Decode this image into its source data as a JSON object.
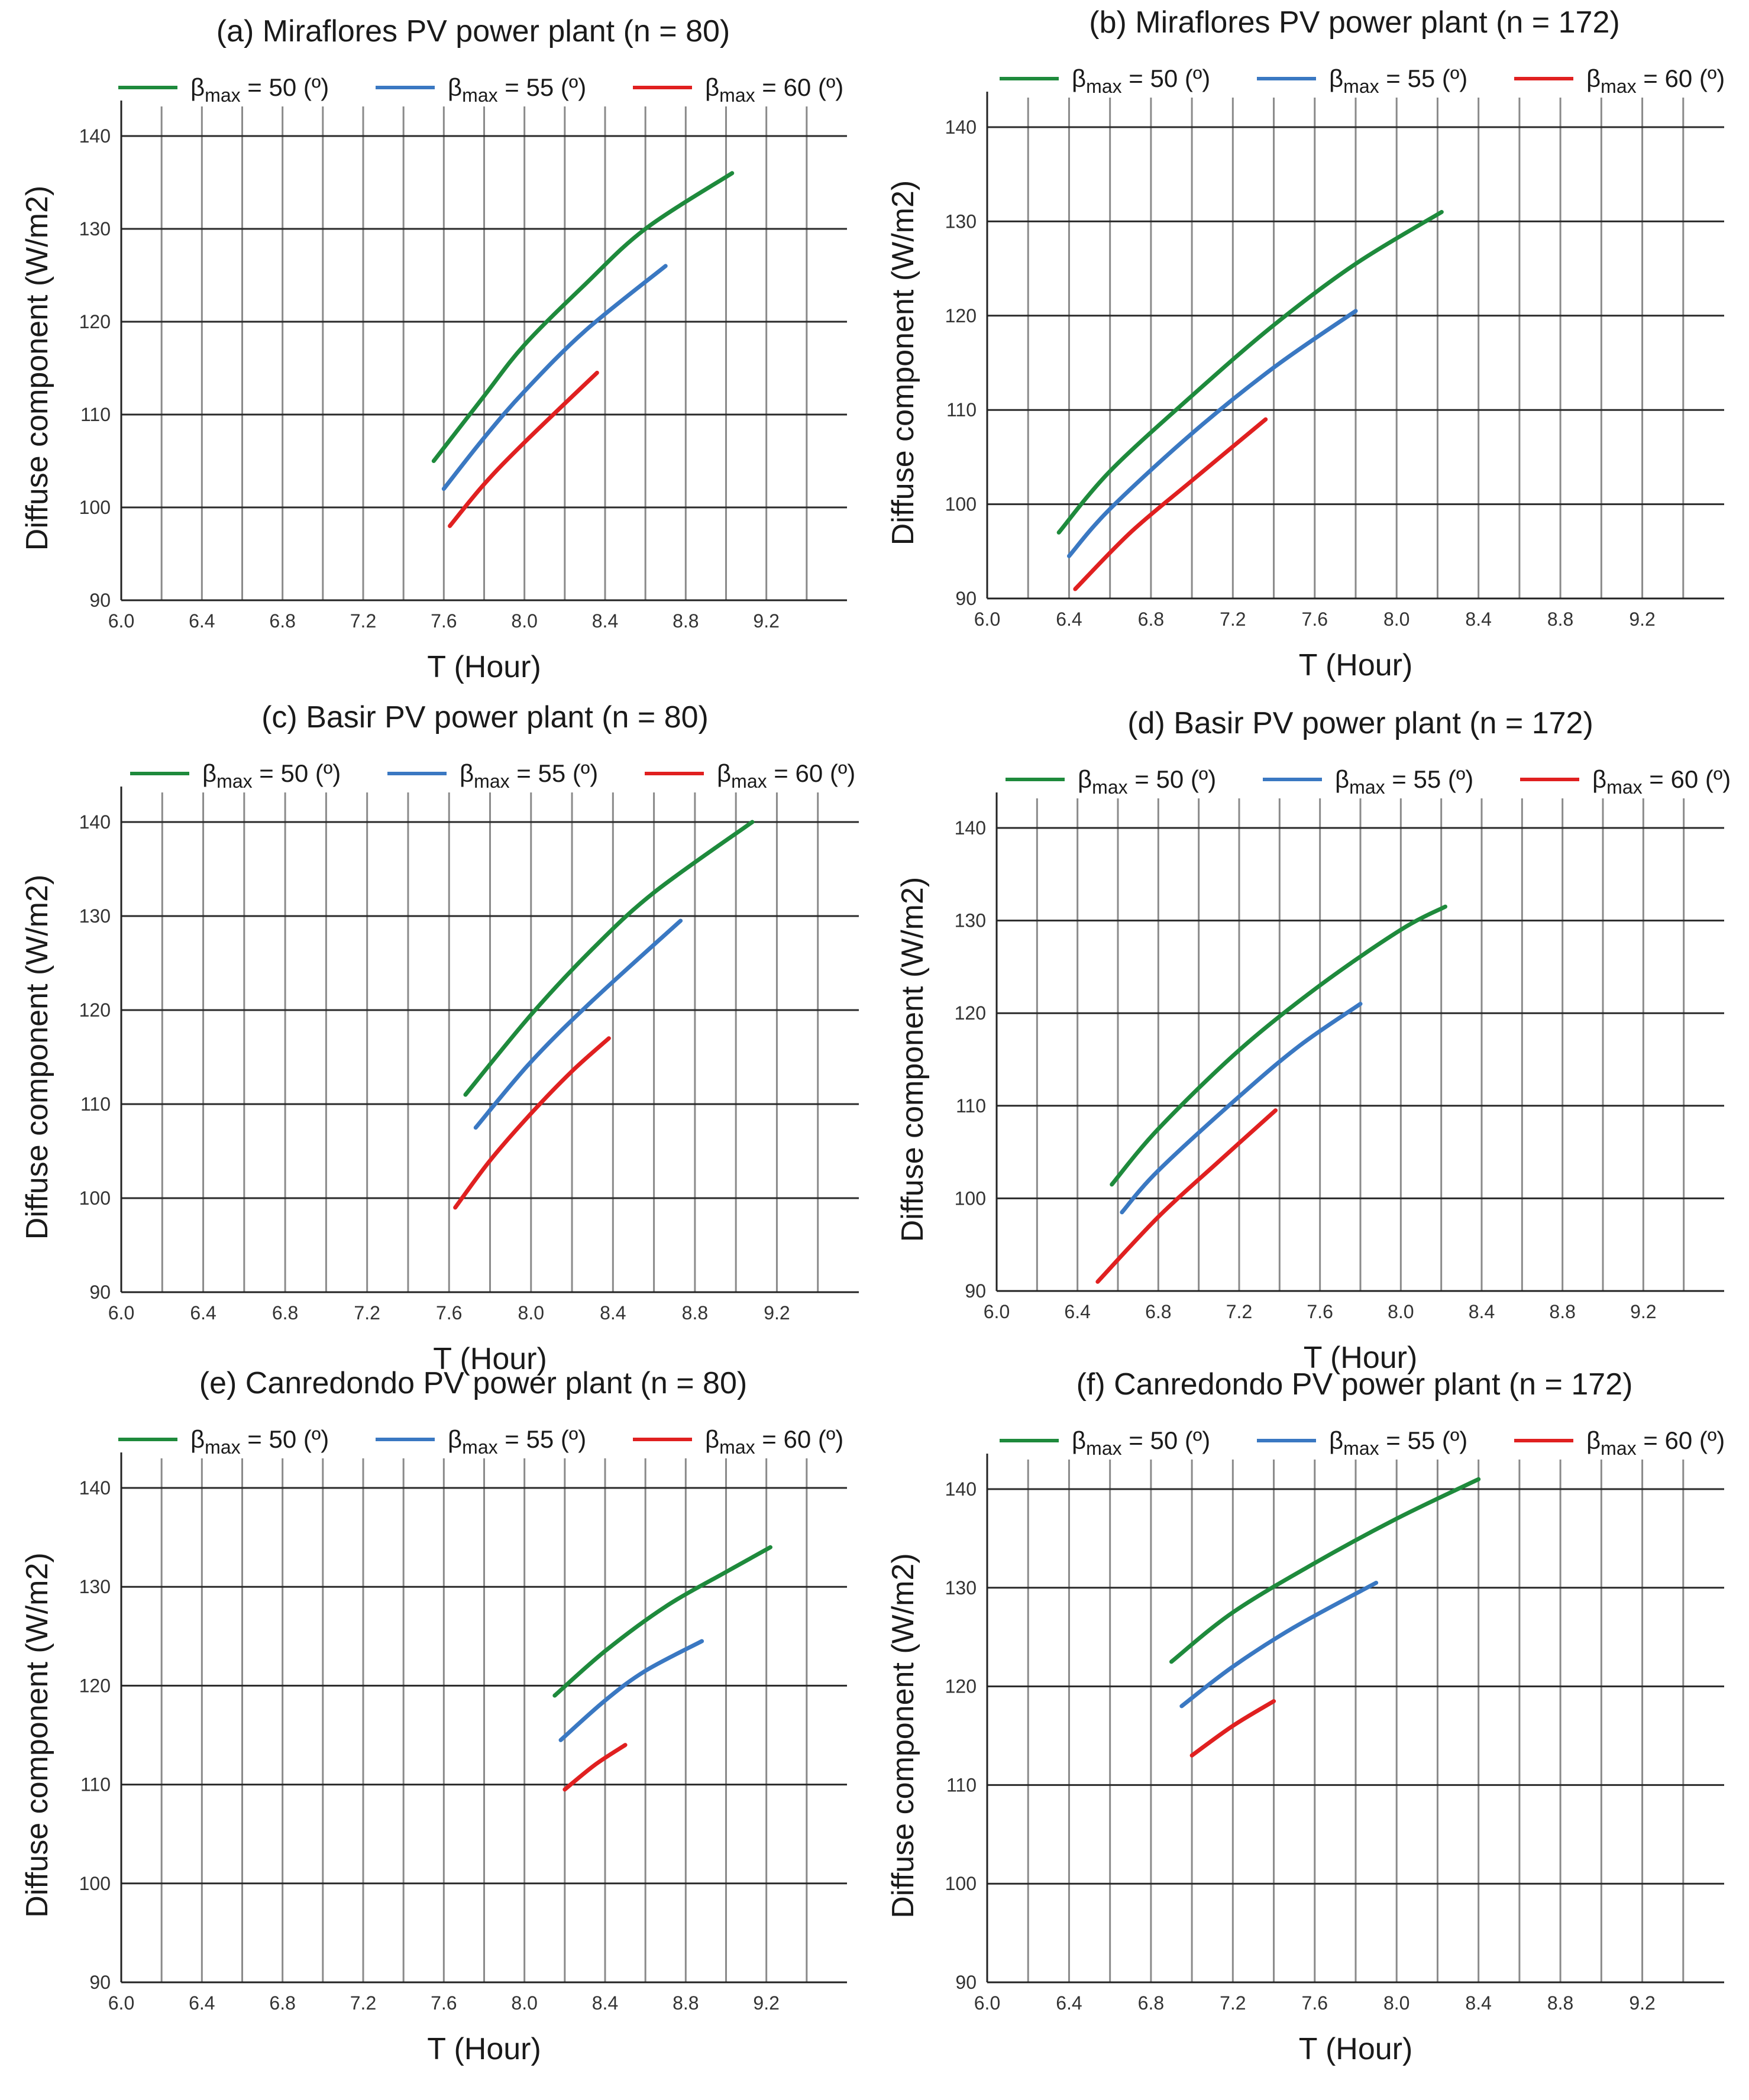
{
  "chart_data": [
    {
      "type": "line",
      "title": "(a) Miraflores PV power plant (n = 80)",
      "xlabel": "T (Hour)",
      "ylabel": "Diffuse component (W/m2)",
      "xlim": [
        6.0,
        9.6
      ],
      "ylim": [
        90,
        140
      ],
      "xticks": [
        "6.0",
        "6.4",
        "6.8",
        "7.2",
        "7.6",
        "8.0",
        "8.4",
        "8.8",
        "9.2"
      ],
      "yticks": [
        "90",
        "100",
        "110",
        "120",
        "130",
        "140"
      ],
      "grid": true,
      "legend": "top",
      "series": [
        {
          "name_main": "β",
          "name_sub": "max",
          "name_rest": " = 50 (º)",
          "color": "#1e8a3c",
          "x": [
            7.55,
            7.8,
            8.0,
            8.3,
            8.6,
            9.03
          ],
          "y": [
            105,
            112,
            117.5,
            124,
            130,
            136
          ]
        },
        {
          "name_main": "β",
          "name_sub": "max",
          "name_rest": " = 55 (º)",
          "color": "#3a78c2",
          "x": [
            7.6,
            7.8,
            8.0,
            8.3,
            8.7
          ],
          "y": [
            102,
            107.5,
            112.5,
            119,
            126
          ]
        },
        {
          "name_main": "β",
          "name_sub": "max",
          "name_rest": " = 60 (º)",
          "color": "#e02020",
          "x": [
            7.63,
            7.8,
            8.0,
            8.36
          ],
          "y": [
            98,
            102.5,
            107,
            114.5
          ]
        }
      ]
    },
    {
      "type": "line",
      "title": "(b) Miraflores PV power plant (n = 172)",
      "xlabel": "T (Hour)",
      "ylabel": "Diffuse component (W/m2)",
      "xlim": [
        6.0,
        9.6
      ],
      "ylim": [
        90,
        140
      ],
      "xticks": [
        "6.0",
        "6.4",
        "6.8",
        "7.2",
        "7.6",
        "8.0",
        "8.4",
        "8.8",
        "9.2"
      ],
      "yticks": [
        "90",
        "100",
        "110",
        "120",
        "130",
        "140"
      ],
      "grid": true,
      "legend": "top",
      "series": [
        {
          "name_main": "β",
          "name_sub": "max",
          "name_rest": " = 50 (º)",
          "color": "#1e8a3c",
          "x": [
            6.35,
            6.6,
            7.0,
            7.4,
            7.8,
            8.22
          ],
          "y": [
            97,
            103.5,
            111.5,
            119,
            125.5,
            131
          ]
        },
        {
          "name_main": "β",
          "name_sub": "max",
          "name_rest": " = 55 (º)",
          "color": "#3a78c2",
          "x": [
            6.4,
            6.6,
            7.0,
            7.4,
            7.8
          ],
          "y": [
            94.5,
            99.5,
            107.5,
            114.5,
            120.5
          ]
        },
        {
          "name_main": "β",
          "name_sub": "max",
          "name_rest": " = 60 (º)",
          "color": "#e02020",
          "x": [
            6.43,
            6.7,
            7.0,
            7.36
          ],
          "y": [
            91,
            97,
            102.5,
            109
          ]
        }
      ]
    },
    {
      "type": "line",
      "title": "(c) Basir PV power plant (n = 80)",
      "xlabel": "T (Hour)",
      "ylabel": "Diffuse component (W/m2)",
      "xlim": [
        6.0,
        9.6
      ],
      "ylim": [
        90,
        140
      ],
      "xticks": [
        "6.0",
        "6.4",
        "6.8",
        "7.2",
        "7.6",
        "8.0",
        "8.4",
        "8.8",
        "9.2"
      ],
      "yticks": [
        "90",
        "100",
        "110",
        "120",
        "130",
        "140"
      ],
      "grid": true,
      "legend": "top",
      "series": [
        {
          "name_main": "β",
          "name_sub": "max",
          "name_rest": " = 50 (º)",
          "color": "#1e8a3c",
          "x": [
            7.68,
            8.0,
            8.3,
            8.6,
            9.08
          ],
          "y": [
            111,
            119.5,
            126.5,
            132.5,
            140
          ]
        },
        {
          "name_main": "β",
          "name_sub": "max",
          "name_rest": " = 55 (º)",
          "color": "#3a78c2",
          "x": [
            7.73,
            8.0,
            8.3,
            8.73
          ],
          "y": [
            107.5,
            114.5,
            121,
            129.5
          ]
        },
        {
          "name_main": "β",
          "name_sub": "max",
          "name_rest": " = 60 (º)",
          "color": "#e02020",
          "x": [
            7.63,
            7.8,
            8.0,
            8.2,
            8.38
          ],
          "y": [
            99,
            104,
            109,
            113.5,
            117
          ]
        }
      ]
    },
    {
      "type": "line",
      "title": "(d) Basir PV power plant (n = 172)",
      "xlabel": "T (Hour)",
      "ylabel": "Diffuse component (W/m2)",
      "xlim": [
        6.0,
        9.6
      ],
      "ylim": [
        90,
        140
      ],
      "xticks": [
        "6.0",
        "6.4",
        "6.8",
        "7.2",
        "7.6",
        "8.0",
        "8.4",
        "8.8",
        "9.2"
      ],
      "yticks": [
        "90",
        "100",
        "110",
        "120",
        "130",
        "140"
      ],
      "grid": true,
      "legend": "top",
      "series": [
        {
          "name_main": "β",
          "name_sub": "max",
          "name_rest": " = 50 (º)",
          "color": "#1e8a3c",
          "x": [
            6.57,
            6.8,
            7.2,
            7.6,
            8.0,
            8.22
          ],
          "y": [
            101.5,
            107.5,
            116,
            123,
            129,
            131.5
          ]
        },
        {
          "name_main": "β",
          "name_sub": "max",
          "name_rest": " = 55 (º)",
          "color": "#3a78c2",
          "x": [
            6.62,
            6.8,
            7.2,
            7.5,
            7.8
          ],
          "y": [
            98.5,
            103,
            111,
            116.5,
            121
          ]
        },
        {
          "name_main": "β",
          "name_sub": "max",
          "name_rest": " = 60 (º)",
          "color": "#e02020",
          "x": [
            6.5,
            6.8,
            7.1,
            7.38
          ],
          "y": [
            91,
            98,
            104,
            109.5
          ]
        }
      ]
    },
    {
      "type": "line",
      "title": "(e) Canredondo PV power plant (n = 80)",
      "xlabel": "T (Hour)",
      "ylabel": "Diffuse component (W/m2)",
      "xlim": [
        6.0,
        9.6
      ],
      "ylim": [
        90,
        140
      ],
      "xticks": [
        "6.0",
        "6.4",
        "6.8",
        "7.2",
        "7.6",
        "8.0",
        "8.4",
        "8.8",
        "9.2"
      ],
      "yticks": [
        "90",
        "100",
        "110",
        "120",
        "130",
        "140"
      ],
      "grid": true,
      "legend": "top",
      "series": [
        {
          "name_main": "β",
          "name_sub": "max",
          "name_rest": " = 50 (º)",
          "color": "#1e8a3c",
          "x": [
            8.15,
            8.4,
            8.7,
            9.0,
            9.22
          ],
          "y": [
            119,
            123.5,
            128,
            131.5,
            134
          ]
        },
        {
          "name_main": "β",
          "name_sub": "max",
          "name_rest": " = 55 (º)",
          "color": "#3a78c2",
          "x": [
            8.18,
            8.4,
            8.6,
            8.88
          ],
          "y": [
            114.5,
            118.5,
            121.5,
            124.5
          ]
        },
        {
          "name_main": "β",
          "name_sub": "max",
          "name_rest": " = 60 (º)",
          "color": "#e02020",
          "x": [
            8.2,
            8.35,
            8.5
          ],
          "y": [
            109.5,
            112,
            114
          ]
        }
      ]
    },
    {
      "type": "line",
      "title": "(f) Canredondo PV power plant (n = 172)",
      "xlabel": "T (Hour)",
      "ylabel": "Diffuse component (W/m2)",
      "xlim": [
        6.0,
        9.6
      ],
      "ylim": [
        90,
        140
      ],
      "xticks": [
        "6.0",
        "6.4",
        "6.8",
        "7.2",
        "7.6",
        "8.0",
        "8.4",
        "8.8",
        "9.2"
      ],
      "yticks": [
        "90",
        "100",
        "110",
        "120",
        "130",
        "140"
      ],
      "grid": true,
      "legend": "top",
      "series": [
        {
          "name_main": "β",
          "name_sub": "max",
          "name_rest": " = 50 (º)",
          "color": "#1e8a3c",
          "x": [
            6.9,
            7.2,
            7.6,
            8.0,
            8.4
          ],
          "y": [
            122.5,
            127.5,
            132.5,
            137,
            141
          ]
        },
        {
          "name_main": "β",
          "name_sub": "max",
          "name_rest": " = 55 (º)",
          "color": "#3a78c2",
          "x": [
            6.95,
            7.2,
            7.5,
            7.9
          ],
          "y": [
            118,
            122,
            126,
            130.5
          ]
        },
        {
          "name_main": "β",
          "name_sub": "max",
          "name_rest": " = 60 (º)",
          "color": "#e02020",
          "x": [
            7.0,
            7.2,
            7.4
          ],
          "y": [
            113,
            116,
            118.5
          ]
        }
      ]
    }
  ]
}
